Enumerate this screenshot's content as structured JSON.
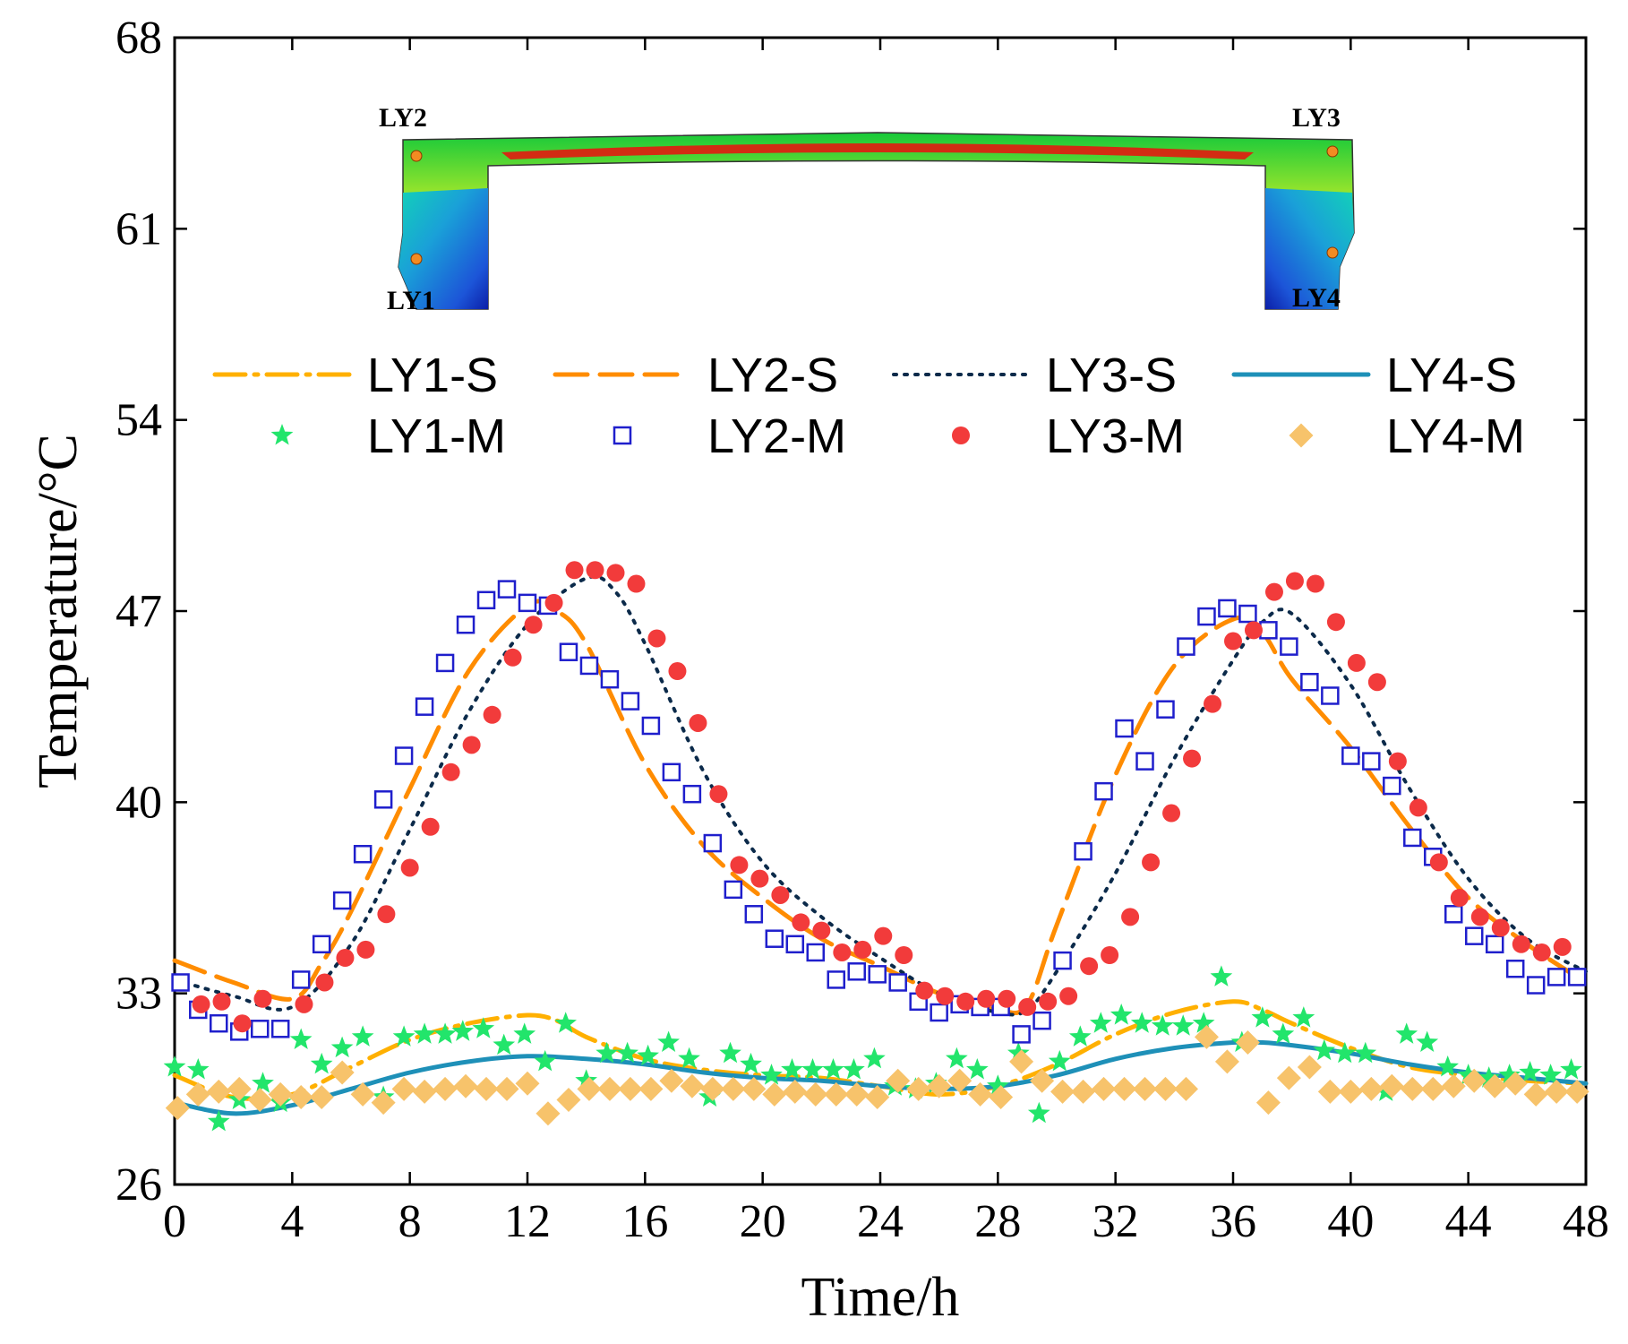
{
  "chart_data": {
    "type": "line",
    "title": "",
    "xlabel": "Time/h",
    "ylabel": "Temperature/°C",
    "xlim": [
      0,
      48
    ],
    "ylim": [
      26,
      68
    ],
    "xticks": [
      0,
      4,
      8,
      12,
      16,
      20,
      24,
      28,
      32,
      36,
      40,
      44,
      48
    ],
    "yticks": [
      26,
      33,
      40,
      47,
      54,
      61,
      68
    ],
    "grid": false,
    "legend_position": "upper-center",
    "colors": {
      "LY1-S": "#FFB000",
      "LY2-S": "#FF8C00",
      "LY3-S": "#0B2A4A",
      "LY4-S": "#1E90B8",
      "LY1-M": "#22E56B",
      "LY2-M": "#1F1FCC",
      "LY3-M": "#F23B3B",
      "LY4-M": "#F7C36B"
    },
    "inset": {
      "description_labels": [
        "LY1",
        "LY2",
        "LY3",
        "LY4"
      ],
      "labels": {
        "ly1": "LY1",
        "ly2": "LY2",
        "ly3": "LY3",
        "ly4": "LY4"
      }
    },
    "series": [
      {
        "name": "LY1-S",
        "kind": "line",
        "style": "dash-dot",
        "x": [
          0,
          2,
          4,
          6,
          8,
          10,
          12,
          13,
          14,
          16,
          18,
          20,
          22,
          24,
          26,
          28,
          30,
          32,
          34,
          36,
          37,
          38,
          40,
          42,
          44,
          46,
          48
        ],
        "values": [
          30.0,
          29.2,
          29.3,
          30.3,
          31.3,
          31.9,
          32.2,
          32.0,
          31.4,
          30.6,
          30.2,
          30.0,
          29.9,
          29.6,
          29.3,
          29.6,
          30.4,
          31.5,
          32.3,
          32.7,
          32.4,
          31.9,
          31.0,
          30.3,
          30.0,
          29.8,
          29.7
        ]
      },
      {
        "name": "LY2-S",
        "kind": "line",
        "style": "dash",
        "x": [
          0,
          2,
          4,
          5,
          6,
          8,
          10,
          12,
          13,
          14,
          16,
          18,
          20,
          22,
          24,
          26,
          28,
          29,
          30,
          32,
          34,
          36,
          37,
          38,
          40,
          42,
          44,
          46,
          48
        ],
        "values": [
          34.2,
          33.4,
          32.8,
          34.1,
          36.0,
          40.5,
          44.8,
          47.2,
          47.0,
          45.8,
          41.4,
          38.4,
          36.5,
          35.0,
          34.0,
          33.0,
          32.4,
          32.6,
          35.5,
          41.0,
          45.0,
          46.7,
          46.2,
          44.5,
          42.0,
          39.1,
          36.5,
          34.8,
          33.4
        ]
      },
      {
        "name": "LY3-S",
        "kind": "line",
        "style": "dot",
        "x": [
          0,
          2,
          4,
          6,
          8,
          10,
          12,
          14,
          15,
          16,
          18,
          20,
          22,
          24,
          26,
          28,
          29,
          30,
          32,
          34,
          36,
          37,
          38,
          40,
          42,
          44,
          46,
          48
        ],
        "values": [
          33.5,
          32.9,
          32.5,
          34.8,
          39.0,
          43.3,
          46.5,
          48.2,
          47.7,
          45.8,
          41.1,
          37.8,
          35.8,
          34.3,
          33.0,
          32.3,
          32.4,
          33.8,
          37.4,
          41.6,
          45.2,
          46.6,
          46.9,
          44.3,
          40.5,
          37.2,
          35.0,
          33.8
        ]
      },
      {
        "name": "LY4-S",
        "kind": "line",
        "style": "solid",
        "x": [
          0,
          2,
          4,
          6,
          8,
          10,
          12,
          14,
          16,
          18,
          20,
          22,
          24,
          26,
          28,
          30,
          32,
          34,
          36,
          37,
          38,
          40,
          42,
          44,
          46,
          48
        ],
        "values": [
          29.0,
          28.6,
          28.9,
          29.5,
          30.1,
          30.5,
          30.7,
          30.6,
          30.4,
          30.1,
          29.9,
          29.8,
          29.6,
          29.5,
          29.6,
          30.0,
          30.6,
          31.0,
          31.2,
          31.2,
          31.1,
          30.8,
          30.4,
          30.1,
          29.9,
          29.7
        ]
      },
      {
        "name": "LY1-M",
        "kind": "scatter",
        "marker": "star",
        "x": [
          0,
          0.8,
          1.5,
          2.2,
          3,
          3.6,
          4.3,
          5,
          5.7,
          6.4,
          7.1,
          7.8,
          8.5,
          9.2,
          9.8,
          10.5,
          11.2,
          11.9,
          12.6,
          13.3,
          14,
          14.7,
          15.4,
          16.1,
          16.8,
          17.5,
          18.2,
          18.9,
          19.6,
          20.3,
          21,
          21.7,
          22.4,
          23.1,
          23.8,
          24.5,
          25.2,
          25.9,
          26.6,
          27.3,
          28,
          28.7,
          29.4,
          30.1,
          30.8,
          31.5,
          32.2,
          32.9,
          33.6,
          34.3,
          35,
          35.6,
          36.3,
          37,
          37.7,
          38.4,
          39.1,
          39.8,
          40.5,
          41.2,
          41.9,
          42.6,
          43.3,
          44,
          44.7,
          45.4,
          46.1,
          46.8,
          47.5
        ],
        "values": [
          30.3,
          30.2,
          28.3,
          29.1,
          29.7,
          29.0,
          31.3,
          30.4,
          31.0,
          31.4,
          29.2,
          31.4,
          31.5,
          31.5,
          31.6,
          31.7,
          31.1,
          31.5,
          30.5,
          31.9,
          29.8,
          30.8,
          30.8,
          30.7,
          31.2,
          30.6,
          29.2,
          30.8,
          30.4,
          30.0,
          30.2,
          30.2,
          30.2,
          30.2,
          30.6,
          29.6,
          29.5,
          29.7,
          30.6,
          30.2,
          29.6,
          30.8,
          28.6,
          30.5,
          31.4,
          31.9,
          32.2,
          31.9,
          31.8,
          31.8,
          31.9,
          33.6,
          31.2,
          32.1,
          31.5,
          32.1,
          30.9,
          30.8,
          30.8,
          29.4,
          31.5,
          31.2,
          30.3,
          30.0,
          29.9,
          30.0,
          30.1,
          30.0,
          30.2
        ]
      },
      {
        "name": "LY2-M",
        "kind": "scatter",
        "marker": "square",
        "x": [
          0.2,
          0.8,
          1.5,
          2.2,
          2.9,
          3.6,
          4.3,
          5.0,
          5.7,
          6.4,
          7.1,
          7.8,
          8.5,
          9.2,
          9.9,
          10.6,
          11.3,
          12.0,
          12.7,
          13.4,
          14.1,
          14.8,
          15.5,
          16.2,
          16.9,
          17.6,
          18.3,
          19.0,
          19.7,
          20.4,
          21.1,
          21.8,
          22.5,
          23.2,
          23.9,
          24.6,
          25.3,
          26.0,
          26.7,
          27.4,
          28.1,
          28.8,
          29.5,
          30.2,
          30.9,
          31.6,
          32.3,
          33.0,
          33.7,
          34.4,
          35.1,
          35.8,
          36.5,
          37.2,
          37.9,
          38.6,
          39.3,
          40.0,
          40.7,
          41.4,
          42.1,
          42.8,
          43.5,
          44.2,
          44.9,
          45.6,
          46.3,
          47.0,
          47.7
        ],
        "values": [
          33.4,
          32.4,
          31.9,
          31.6,
          31.7,
          31.7,
          33.5,
          34.8,
          36.4,
          38.1,
          40.1,
          41.7,
          43.5,
          45.1,
          46.5,
          47.4,
          47.8,
          47.3,
          47.2,
          45.5,
          45.0,
          44.5,
          43.7,
          42.8,
          41.1,
          40.3,
          38.5,
          36.8,
          35.9,
          35.0,
          34.8,
          34.5,
          33.5,
          33.8,
          33.7,
          33.4,
          32.7,
          32.3,
          32.6,
          32.5,
          32.5,
          31.5,
          32.0,
          34.2,
          38.2,
          40.4,
          42.7,
          41.5,
          43.4,
          45.7,
          46.8,
          47.1,
          46.9,
          46.3,
          45.7,
          44.4,
          43.9,
          41.7,
          41.5,
          40.6,
          38.7,
          38.0,
          35.9,
          35.1,
          34.8,
          33.9,
          33.3,
          33.6,
          33.6
        ]
      },
      {
        "name": "LY3-M",
        "kind": "scatter",
        "marker": "circle",
        "x": [
          0.9,
          1.6,
          2.3,
          3.0,
          4.4,
          5.1,
          5.8,
          6.5,
          7.2,
          8.0,
          8.7,
          9.4,
          10.1,
          10.8,
          11.5,
          12.2,
          12.9,
          13.6,
          14.3,
          15.0,
          15.7,
          16.4,
          17.1,
          17.8,
          18.5,
          19.2,
          19.9,
          20.6,
          21.3,
          22.0,
          22.7,
          23.4,
          24.1,
          24.8,
          25.5,
          26.2,
          26.9,
          27.6,
          28.3,
          29.0,
          29.7,
          30.4,
          31.1,
          31.8,
          32.5,
          33.2,
          33.9,
          34.6,
          35.3,
          36.0,
          36.7,
          37.4,
          38.1,
          38.8,
          39.5,
          40.2,
          40.9,
          41.6,
          42.3,
          43.0,
          43.7,
          44.4,
          45.1,
          45.8,
          46.5,
          47.2
        ],
        "values": [
          32.6,
          32.7,
          31.9,
          32.8,
          32.6,
          33.4,
          34.3,
          34.6,
          35.9,
          37.6,
          39.1,
          41.1,
          42.1,
          43.2,
          45.3,
          46.5,
          47.3,
          48.5,
          48.5,
          48.4,
          48.0,
          46.0,
          44.8,
          42.9,
          40.3,
          37.7,
          37.2,
          36.6,
          35.6,
          35.3,
          34.5,
          34.6,
          35.1,
          34.4,
          33.1,
          32.9,
          32.7,
          32.8,
          32.8,
          32.5,
          32.7,
          32.9,
          34.0,
          34.4,
          35.8,
          37.8,
          39.6,
          41.6,
          43.6,
          45.9,
          46.3,
          47.7,
          48.1,
          48.0,
          46.6,
          45.1,
          44.4,
          41.5,
          39.8,
          37.8,
          36.5,
          35.8,
          35.4,
          34.8,
          34.5,
          34.7
        ]
      },
      {
        "name": "LY4-M",
        "kind": "scatter",
        "marker": "diamond",
        "x": [
          0.1,
          0.8,
          1.5,
          2.2,
          2.9,
          3.6,
          4.3,
          5.0,
          5.7,
          6.4,
          7.1,
          7.8,
          8.5,
          9.2,
          9.9,
          10.6,
          11.3,
          12.0,
          12.7,
          13.4,
          14.1,
          14.8,
          15.5,
          16.2,
          16.9,
          17.6,
          18.3,
          19.0,
          19.7,
          20.4,
          21.1,
          21.8,
          22.5,
          23.2,
          23.9,
          24.6,
          25.3,
          26.0,
          26.7,
          27.4,
          28.1,
          28.8,
          29.5,
          30.2,
          30.9,
          31.6,
          32.3,
          33.0,
          33.7,
          34.4,
          35.1,
          35.8,
          36.5,
          37.2,
          37.9,
          38.6,
          39.3,
          40.0,
          40.7,
          41.4,
          42.1,
          42.8,
          43.5,
          44.2,
          44.9,
          45.6,
          46.3,
          47.0,
          47.7
        ],
        "values": [
          28.8,
          29.3,
          29.4,
          29.5,
          29.1,
          29.3,
          29.2,
          29.2,
          30.1,
          29.3,
          29.0,
          29.5,
          29.4,
          29.5,
          29.6,
          29.5,
          29.5,
          29.7,
          28.6,
          29.1,
          29.5,
          29.5,
          29.5,
          29.5,
          29.8,
          29.6,
          29.5,
          29.5,
          29.5,
          29.3,
          29.4,
          29.3,
          29.3,
          29.3,
          29.2,
          29.8,
          29.5,
          29.6,
          29.8,
          29.3,
          29.2,
          30.5,
          29.8,
          29.4,
          29.4,
          29.5,
          29.5,
          29.5,
          29.5,
          29.5,
          31.4,
          30.5,
          31.2,
          29.0,
          29.9,
          30.3,
          29.4,
          29.4,
          29.5,
          29.6,
          29.5,
          29.5,
          29.6,
          29.8,
          29.6,
          29.7,
          29.3,
          29.4,
          29.4
        ]
      }
    ]
  }
}
